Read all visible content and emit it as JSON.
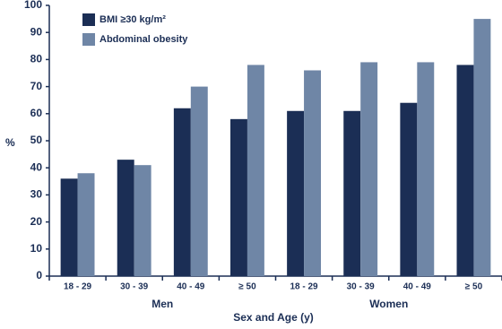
{
  "chart_data": {
    "type": "bar",
    "categories": [
      "18 - 29",
      "30 - 39",
      "40 - 49",
      "≥ 50",
      "18 - 29",
      "30 - 39",
      "40 - 49",
      "≥ 50"
    ],
    "category_groups": [
      "Men",
      "Women"
    ],
    "series": [
      {
        "name": "BMI ≥30 kg/m²",
        "color": "#1b2e55",
        "values": [
          36,
          43,
          62,
          58,
          61,
          61,
          64,
          78
        ]
      },
      {
        "name": "Abdominal obesity",
        "color": "#6f86a6",
        "values": [
          38,
          41,
          70,
          78,
          76,
          79,
          79,
          95
        ]
      }
    ],
    "xlabel": "Sex and Age (y)",
    "ylabel": "%",
    "ylim": [
      0,
      100
    ],
    "yticks": [
      0,
      10,
      20,
      30,
      40,
      50,
      60,
      70,
      80,
      90,
      100
    ],
    "legend": "upper left"
  }
}
